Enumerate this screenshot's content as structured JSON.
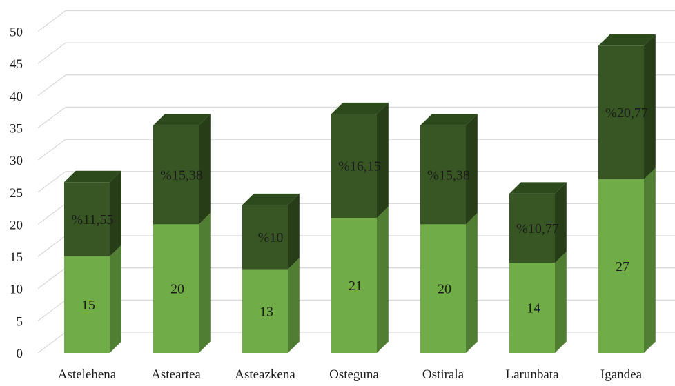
{
  "chart_data": {
    "type": "bar",
    "stacked": true,
    "three_d": true,
    "categories": [
      "Astelehena",
      "Asteartea",
      "Asteazkena",
      "Osteguna",
      "Ostirala",
      "Larunbata",
      "Igandea"
    ],
    "series": [
      {
        "values": [
          15,
          20,
          13,
          21,
          20,
          14,
          27
        ],
        "labels": [
          "15",
          "20",
          "13",
          "21",
          "20",
          "14",
          "27"
        ]
      },
      {
        "values": [
          11.55,
          15.38,
          10,
          16.15,
          15.38,
          10.77,
          20.77
        ],
        "labels": [
          "%11,55",
          "%15,38",
          "%10",
          "%16,15",
          "%15,38",
          "%10,77",
          "%20,77"
        ]
      }
    ],
    "ylim": [
      0,
      50
    ],
    "yticks": [
      "0",
      "5",
      "10",
      "15",
      "20",
      "25",
      "30",
      "35",
      "40",
      "45",
      "50"
    ],
    "grid": true,
    "colors": {
      "lower_front": "#70AD47",
      "lower_side": "#507E32",
      "upper_front": "#375623",
      "upper_side": "#263D18",
      "top_face": "#2D4A1C",
      "grid": "#D9D9D9"
    }
  }
}
